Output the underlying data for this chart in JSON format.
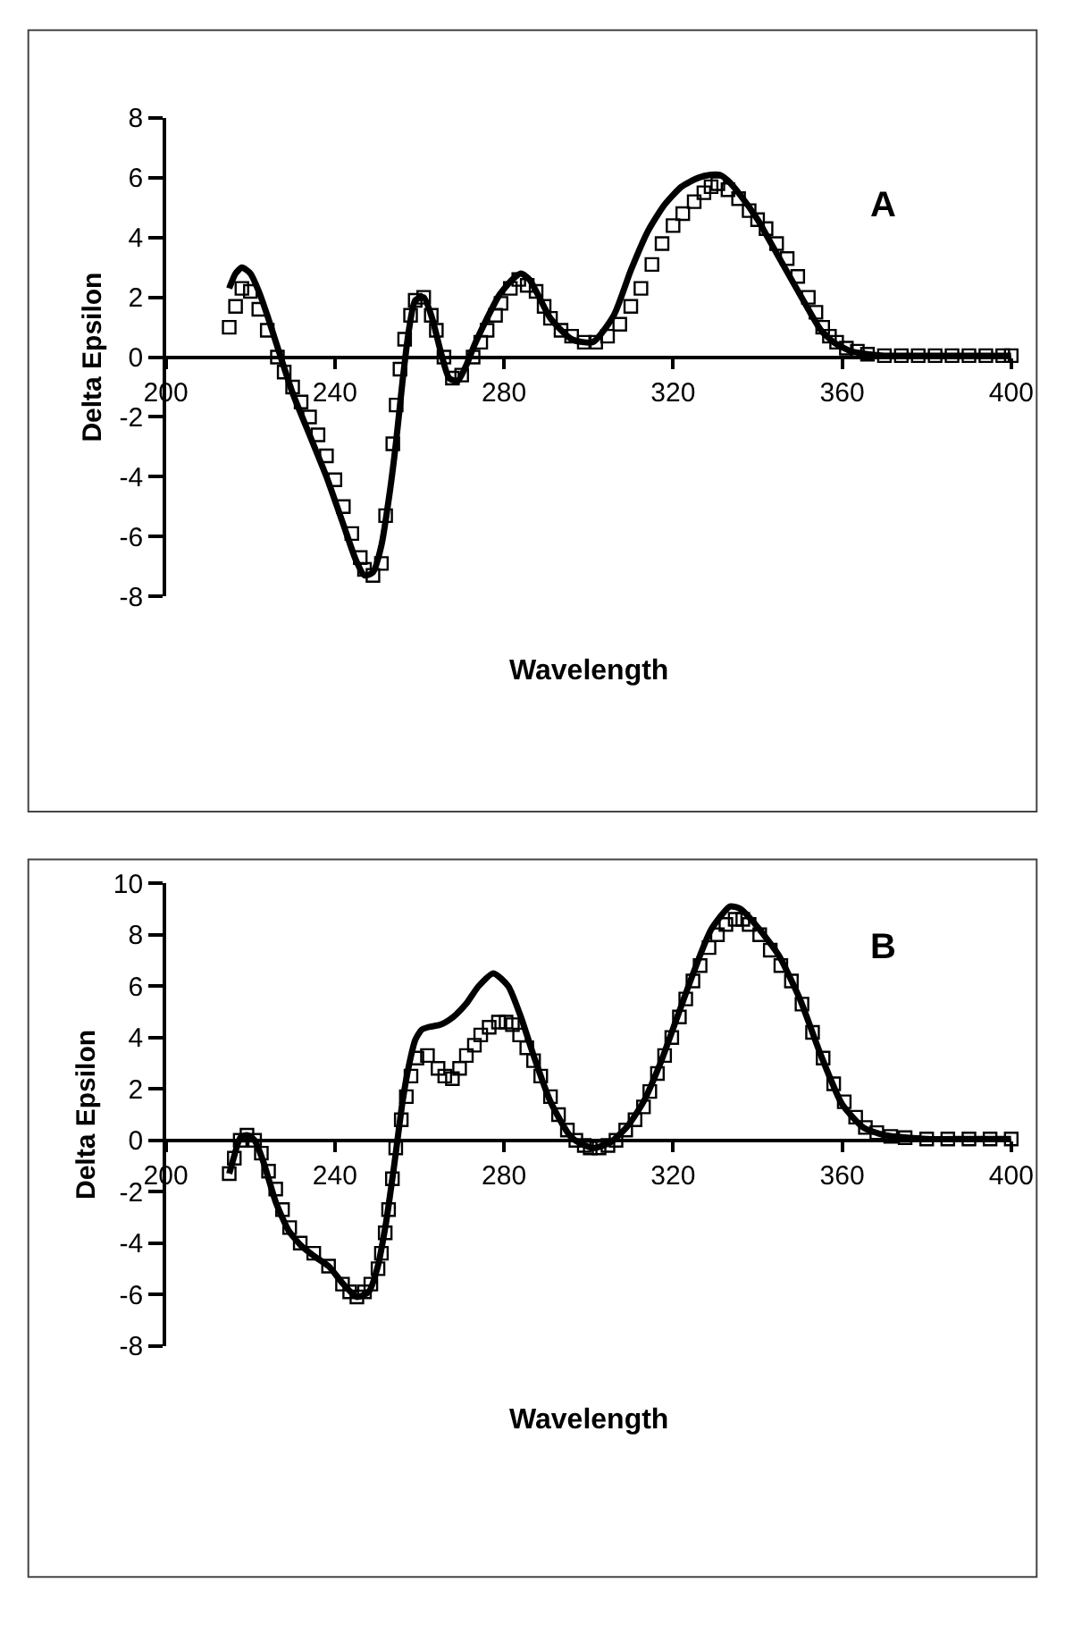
{
  "chart_data": [
    {
      "type": "line",
      "xlabel": "Wavelength",
      "ylabel": "Delta Epsilon",
      "annotations": [
        "A"
      ],
      "xlim": [
        200,
        400
      ],
      "ylim": [
        -8,
        8
      ],
      "xticks": [
        200,
        240,
        280,
        320,
        360,
        400
      ],
      "yticks": [
        -8,
        -6,
        -4,
        -2,
        0,
        2,
        4,
        6,
        8
      ],
      "series": [
        {
          "color": "#000000",
          "line_style": "solid",
          "x": [
            215,
            216.5,
            218,
            220,
            222,
            224,
            226.5,
            230,
            234,
            238,
            242,
            245,
            247,
            249,
            251,
            253,
            254.5,
            256,
            257.5,
            259,
            261,
            263,
            265,
            267,
            269,
            271,
            273,
            276,
            279,
            282,
            284,
            286,
            288,
            291,
            296,
            301,
            306,
            310,
            314,
            318,
            322,
            326,
            329,
            331,
            333,
            336,
            340,
            344,
            348,
            352,
            355,
            358,
            362,
            366,
            370,
            380,
            390,
            400
          ],
          "values": [
            2.3,
            2.8,
            3.0,
            2.8,
            2.2,
            1.4,
            0.3,
            -1.2,
            -2.6,
            -4.0,
            -5.6,
            -6.8,
            -7.3,
            -7.2,
            -6.3,
            -4.5,
            -2.8,
            -0.8,
            0.9,
            1.9,
            2.0,
            1.3,
            0.2,
            -0.7,
            -0.8,
            -0.3,
            0.4,
            1.3,
            2.1,
            2.6,
            2.8,
            2.6,
            2.1,
            1.3,
            0.6,
            0.5,
            1.4,
            2.9,
            4.2,
            5.1,
            5.7,
            6.0,
            6.1,
            6.1,
            5.9,
            5.4,
            4.6,
            3.6,
            2.6,
            1.6,
            0.9,
            0.5,
            0.2,
            0.1,
            0.05,
            0.05,
            0.05,
            0.05
          ]
        },
        {
          "type": "scatter",
          "marker": "square",
          "color": "#000000",
          "x": [
            215,
            216.5,
            218,
            220,
            222,
            224,
            226.4,
            228,
            230,
            232,
            234,
            236,
            238,
            240,
            242,
            244,
            246,
            247,
            249,
            251,
            252,
            253.7,
            254.5,
            255.4,
            256.5,
            257.9,
            259,
            261,
            262.8,
            264,
            265.8,
            267.8,
            270,
            272.7,
            274.5,
            276,
            278,
            279.3,
            281.5,
            283.5,
            285.5,
            287.6,
            289.5,
            291,
            293.5,
            296,
            299,
            301.7,
            304.5,
            307.4,
            310,
            312.4,
            315,
            317.4,
            320,
            322.3,
            325,
            327.3,
            329,
            330.6,
            333,
            335.5,
            338,
            340,
            342,
            344.5,
            347,
            349.5,
            352,
            353.8,
            355.4,
            357,
            358.7,
            361,
            363.6,
            366,
            370,
            374,
            378,
            382,
            386,
            390,
            394,
            398,
            400
          ],
          "values": [
            1.0,
            1.7,
            2.3,
            2.2,
            1.6,
            0.9,
            0.0,
            -0.5,
            -1.0,
            -1.5,
            -2.0,
            -2.6,
            -3.3,
            -4.1,
            -5.0,
            -5.9,
            -6.7,
            -7.1,
            -7.3,
            -6.9,
            -5.3,
            -2.9,
            -1.6,
            -0.4,
            0.6,
            1.4,
            1.9,
            2.0,
            1.4,
            0.9,
            0.0,
            -0.7,
            -0.6,
            0.0,
            0.5,
            0.9,
            1.4,
            1.8,
            2.3,
            2.6,
            2.4,
            2.2,
            1.7,
            1.3,
            0.9,
            0.7,
            0.5,
            0.5,
            0.7,
            1.1,
            1.7,
            2.3,
            3.1,
            3.8,
            4.4,
            4.8,
            5.2,
            5.5,
            5.7,
            5.8,
            5.6,
            5.3,
            4.9,
            4.6,
            4.3,
            3.8,
            3.3,
            2.7,
            2.0,
            1.5,
            1.0,
            0.7,
            0.5,
            0.3,
            0.2,
            0.1,
            0.05,
            0.05,
            0.05,
            0.05,
            0.05,
            0.05,
            0.05,
            0.05,
            0.05
          ]
        }
      ]
    },
    {
      "type": "line",
      "xlabel": "Wavelength",
      "ylabel": "Delta Epsilon",
      "annotations": [
        "B"
      ],
      "xlim": [
        200,
        400
      ],
      "ylim": [
        -8,
        10
      ],
      "xticks": [
        200,
        240,
        280,
        320,
        360,
        400
      ],
      "yticks": [
        -8,
        -6,
        -4,
        -2,
        0,
        2,
        4,
        6,
        8,
        10
      ],
      "series": [
        {
          "color": "#000000",
          "line_style": "solid",
          "x": [
            215,
            216.2,
            217.6,
            219.2,
            221,
            223,
            226,
            229,
            232,
            235,
            238.5,
            242,
            245.2,
            248,
            250,
            252,
            254,
            256,
            257.5,
            259,
            260.5,
            262,
            265,
            268,
            271,
            274,
            277.5,
            281,
            284,
            287,
            291,
            296,
            301,
            305,
            309,
            313,
            317,
            321,
            325,
            329,
            333.5,
            336,
            340,
            345,
            350,
            355,
            360,
            365,
            370,
            380,
            390,
            400
          ],
          "values": [
            -1.3,
            -0.6,
            0.1,
            0.2,
            0.0,
            -0.8,
            -2.4,
            -3.5,
            -4.1,
            -4.5,
            -4.9,
            -5.6,
            -6.1,
            -5.9,
            -5.0,
            -3.3,
            -1.0,
            1.5,
            2.9,
            3.9,
            4.3,
            4.4,
            4.5,
            4.8,
            5.3,
            6.0,
            6.5,
            6.0,
            4.8,
            3.3,
            1.5,
            0.1,
            -0.3,
            -0.1,
            0.5,
            1.5,
            3.0,
            4.8,
            6.6,
            8.2,
            9.1,
            9.0,
            8.3,
            7.2,
            5.5,
            3.3,
            1.4,
            0.5,
            0.2,
            0.05,
            0.05,
            0.05
          ]
        },
        {
          "type": "scatter",
          "marker": "square",
          "color": "#000000",
          "x": [
            215,
            216.2,
            217.6,
            219.2,
            221,
            222.6,
            224.3,
            226,
            227.6,
            229.3,
            231.8,
            235,
            238.5,
            241.8,
            243.5,
            245.2,
            247,
            248.5,
            250.2,
            251,
            251.9,
            252.7,
            253.6,
            254.4,
            255.7,
            256.9,
            258,
            259.4,
            261.9,
            264.4,
            266,
            267.8,
            269.5,
            271.1,
            273,
            274.5,
            276.5,
            278.7,
            280.5,
            282,
            283.7,
            285.4,
            287,
            288.7,
            291,
            292.9,
            295,
            297,
            299,
            300.4,
            302.5,
            304.6,
            306.5,
            308.8,
            311,
            313,
            314.5,
            316.3,
            318,
            319.7,
            321.5,
            323,
            324.7,
            326.4,
            328.5,
            330.5,
            332.5,
            334.7,
            336.5,
            338,
            340.5,
            343,
            345.5,
            348,
            350.5,
            353,
            355.5,
            358,
            360.5,
            363.2,
            365.5,
            368.2,
            371.5,
            374.9,
            380,
            385,
            390,
            395,
            400
          ],
          "values": [
            -1.3,
            -0.7,
            0.0,
            0.2,
            0.0,
            -0.5,
            -1.2,
            -1.9,
            -2.7,
            -3.4,
            -4.0,
            -4.4,
            -4.9,
            -5.6,
            -5.9,
            -6.1,
            -5.9,
            -5.6,
            -5.0,
            -4.4,
            -3.6,
            -2.7,
            -1.5,
            -0.3,
            0.8,
            1.7,
            2.5,
            3.2,
            3.3,
            2.8,
            2.5,
            2.4,
            2.8,
            3.3,
            3.7,
            4.1,
            4.4,
            4.6,
            4.6,
            4.5,
            4.1,
            3.6,
            3.1,
            2.5,
            1.7,
            1.0,
            0.4,
            0.0,
            -0.2,
            -0.3,
            -0.3,
            -0.2,
            0.0,
            0.4,
            0.8,
            1.3,
            1.9,
            2.6,
            3.3,
            4.0,
            4.8,
            5.5,
            6.2,
            6.8,
            7.5,
            8.0,
            8.4,
            8.6,
            8.6,
            8.4,
            8.0,
            7.4,
            6.8,
            6.2,
            5.3,
            4.2,
            3.2,
            2.2,
            1.5,
            0.9,
            0.5,
            0.3,
            0.15,
            0.1,
            0.05,
            0.05,
            0.05,
            0.05,
            0.05
          ]
        }
      ]
    }
  ]
}
